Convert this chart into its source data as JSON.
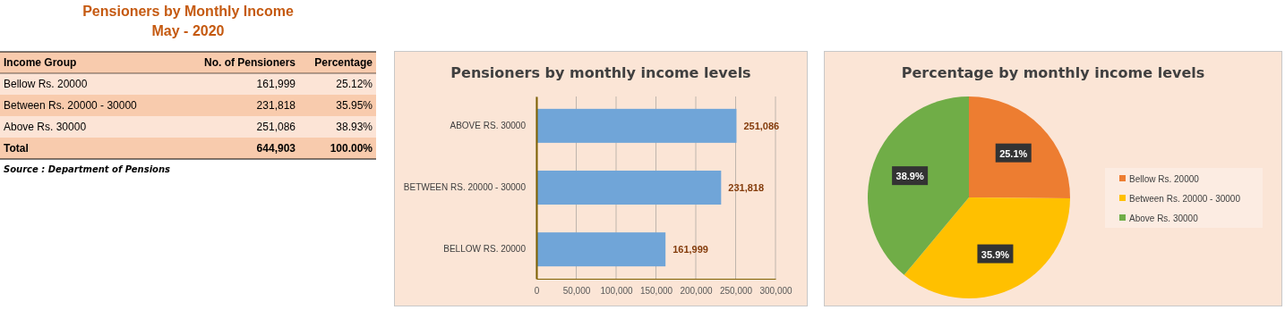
{
  "chart_data": [
    {
      "type": "other",
      "title": "Pensioners by Monthly Income",
      "subtitle": "May - 2020",
      "annotations": [
        "Income Group",
        "No. of Pensioners",
        "Percentage",
        "Bellow Rs. 20000",
        "161,999",
        "25.12%",
        "Between Rs. 20000 - 30000",
        "231,818",
        "35.95%",
        "Above Rs. 30000",
        "251,086",
        "38.93%",
        "Total",
        "644,903",
        "100.00%",
        "Source : Department of Pensions"
      ]
    },
    {
      "type": "bar",
      "orientation": "horizontal",
      "title": "Pensioners by monthly income levels",
      "categories": [
        "ABOVE RS. 30000",
        "BETWEEN RS. 20000 - 30000",
        "BELLOW RS. 20000"
      ],
      "values": [
        251086,
        231818,
        161999
      ],
      "color": "#70a5d8",
      "xlim": [
        0,
        300000
      ],
      "xticks": [
        0,
        {
          "value": 50000,
          "label": "50,000"
        },
        {
          "value": 100000,
          "label": "100,000"
        },
        {
          "value": 150000,
          "label": "150,000"
        },
        {
          "value": 200000,
          "label": "200,000"
        },
        {
          "value": 250000,
          "label": "250,000"
        },
        {
          "value": 300000,
          "label": "300,000"
        }
      ],
      "grid": "x",
      "value_labels": [
        "251,086",
        "231,818",
        "161,999"
      ]
    },
    {
      "type": "pie",
      "title": "Percentage by monthly income levels",
      "categories": [
        "Bellow Rs. 20000",
        "Between Rs. 20000 - 30000",
        "Above Rs. 30000"
      ],
      "values": [
        25.1,
        35.9,
        38.9
      ],
      "colors": [
        "#ed7d31",
        "#ffc000",
        "#70ad47"
      ],
      "value_labels": [
        "25.1%",
        "35.9%",
        "38.9%"
      ],
      "legend": "right"
    }
  ]
}
